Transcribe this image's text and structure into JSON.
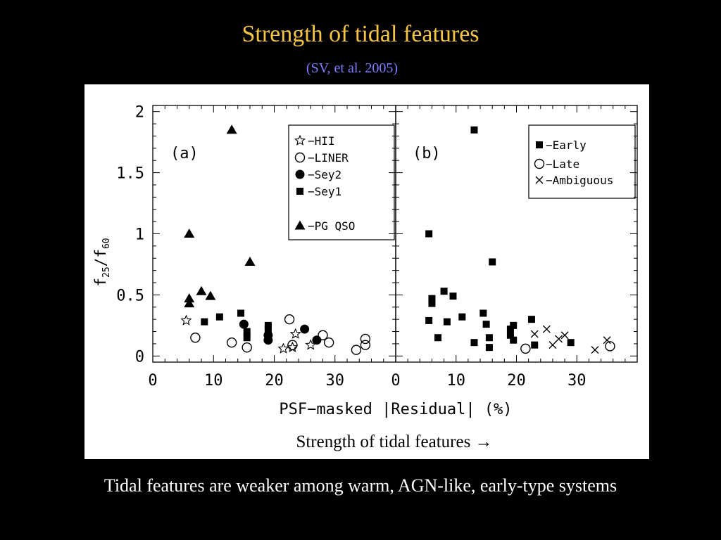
{
  "slide": {
    "title": "Strength of tidal features",
    "subtitle": "(SV, et al. 2005)",
    "caption": "Tidal features are weaker among warm, AGN-like, early-type systems",
    "colors": {
      "background": "#000000",
      "title": "#f5c542",
      "subtitle": "#7d7dff",
      "caption": "#ffffff"
    }
  },
  "figure": {
    "arrow_label": "Strength of tidal features →"
  },
  "chart_data": [
    {
      "type": "scatter",
      "panel_label": "(a)",
      "xlabel": "PSF−masked |Residual| (%)",
      "ylabel": "f25/f60",
      "ylabel_parts": {
        "f": "f",
        "sub1": "25",
        "slash": "/f",
        "sub2": "60"
      },
      "xlim": [
        0,
        40
      ],
      "ylim": [
        -0.05,
        2.05
      ],
      "xticks": [
        0,
        10,
        20,
        30
      ],
      "xtick_labels": [
        "0",
        "10",
        "20",
        "30"
      ],
      "yticks": [
        0,
        0.5,
        1,
        1.5,
        2
      ],
      "ytick_labels": [
        "0",
        "0.5",
        "1",
        "1.5",
        "2"
      ],
      "grid": false,
      "legend_position": "top-right",
      "series": [
        {
          "name": "HII",
          "legend": "−HII",
          "marker": "star-open",
          "points": [
            [
              5.5,
              0.29
            ],
            [
              21.5,
              0.06
            ],
            [
              23,
              0.07
            ],
            [
              23.5,
              0.18
            ],
            [
              26,
              0.09
            ]
          ]
        },
        {
          "name": "LINER",
          "legend": "−LINER",
          "marker": "circle-open",
          "points": [
            [
              7,
              0.15
            ],
            [
              13,
              0.11
            ],
            [
              15.5,
              0.07
            ],
            [
              22.5,
              0.3
            ],
            [
              23,
              0.09
            ],
            [
              28,
              0.17
            ],
            [
              29,
              0.11
            ],
            [
              33.5,
              0.05
            ],
            [
              35,
              0.14
            ],
            [
              35,
              0.09
            ]
          ]
        },
        {
          "name": "Sey2",
          "legend": "−Sey2",
          "marker": "circle-filled",
          "points": [
            [
              15,
              0.26
            ],
            [
              19,
              0.17
            ],
            [
              19,
              0.13
            ],
            [
              25,
              0.22
            ],
            [
              27,
              0.13
            ]
          ]
        },
        {
          "name": "Sey1",
          "legend": "−Sey1",
          "marker": "square-filled",
          "points": [
            [
              8.5,
              0.28
            ],
            [
              11,
              0.32
            ],
            [
              14.5,
              0.35
            ],
            [
              15.5,
              0.2
            ],
            [
              15.5,
              0.15
            ],
            [
              19,
              0.25
            ],
            [
              19,
              0.22
            ]
          ]
        },
        {
          "name": "PG QSO",
          "legend": "−PG QSO",
          "marker": "triangle-filled",
          "points": [
            [
              6,
              1.0
            ],
            [
              6,
              0.47
            ],
            [
              6,
              0.43
            ],
            [
              8,
              0.53
            ],
            [
              9.5,
              0.49
            ],
            [
              13,
              1.85
            ],
            [
              16,
              0.77
            ]
          ]
        }
      ]
    },
    {
      "type": "scatter",
      "panel_label": "(b)",
      "xlabel": "PSF−masked |Residual| (%)",
      "xlim": [
        0,
        40
      ],
      "ylim": [
        -0.05,
        2.05
      ],
      "xticks": [
        0,
        10,
        20,
        30
      ],
      "xtick_labels": [
        "0",
        "10",
        "20",
        "30"
      ],
      "grid": false,
      "legend_position": "top-right",
      "series": [
        {
          "name": "Early",
          "legend": "−Early",
          "marker": "square-filled",
          "points": [
            [
              5.5,
              1.0
            ],
            [
              6,
              0.47
            ],
            [
              6,
              0.43
            ],
            [
              5.5,
              0.29
            ],
            [
              7,
              0.15
            ],
            [
              8,
              0.53
            ],
            [
              8.5,
              0.28
            ],
            [
              9.5,
              0.49
            ],
            [
              11,
              0.32
            ],
            [
              13,
              1.85
            ],
            [
              13,
              0.11
            ],
            [
              14.5,
              0.35
            ],
            [
              15,
              0.26
            ],
            [
              15.5,
              0.15
            ],
            [
              15.5,
              0.07
            ],
            [
              16,
              0.77
            ],
            [
              19,
              0.22
            ],
            [
              19,
              0.17
            ],
            [
              19.5,
              0.13
            ],
            [
              19.5,
              0.25
            ],
            [
              22.5,
              0.3
            ],
            [
              23,
              0.09
            ],
            [
              29,
              0.11
            ]
          ]
        },
        {
          "name": "Late",
          "legend": "−Late",
          "marker": "circle-open",
          "points": [
            [
              21.5,
              0.06
            ],
            [
              35.5,
              0.08
            ]
          ]
        },
        {
          "name": "Ambiguous",
          "legend": "−Ambiguous",
          "marker": "cross",
          "points": [
            [
              23,
              0.18
            ],
            [
              25,
              0.22
            ],
            [
              26,
              0.09
            ],
            [
              27,
              0.14
            ],
            [
              28,
              0.17
            ],
            [
              33,
              0.05
            ],
            [
              35,
              0.13
            ]
          ]
        }
      ]
    }
  ]
}
